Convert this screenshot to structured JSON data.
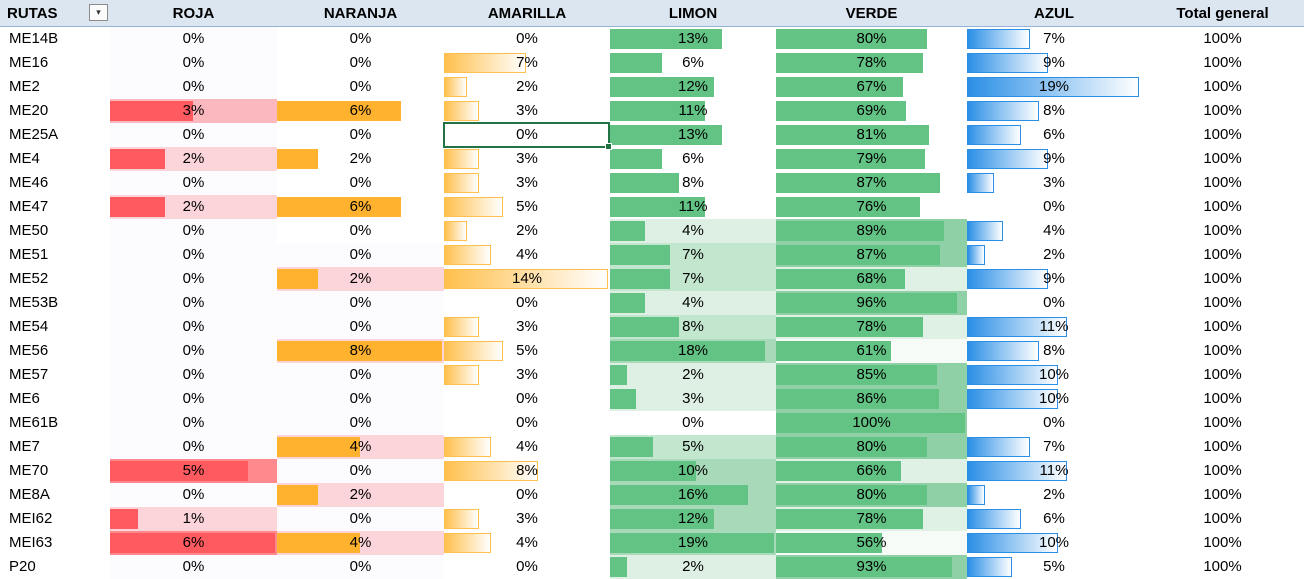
{
  "columns": [
    "RUTAS",
    "ROJA",
    "NARANJA",
    "AMARILLA",
    "LIMON",
    "VERDE",
    "AZUL",
    "Total general"
  ],
  "filter_icon": "dropdown-arrow-icon",
  "selected_cell": {
    "row": 4,
    "column": "AMARILLA"
  },
  "colors": {
    "header_bg": "#dce6f1",
    "roja_bar": "#ff5a5f",
    "naranja_bar": "#ffb22e",
    "amarilla_bar": "#ffc04d",
    "limon_bar": "#63c384",
    "verde_bar": "#63c384",
    "azul_bar": "#2b8fe6",
    "pink_bg": "#fbd5da",
    "green_bg": "#d7ece0"
  },
  "rows": [
    {
      "ruta": "ME14B",
      "roja": "0%",
      "naranja": "0%",
      "amarilla": "0%",
      "limon": "13%",
      "verde": "80%",
      "azul": "7%",
      "total": "100%"
    },
    {
      "ruta": "ME16",
      "roja": "0%",
      "naranja": "0%",
      "amarilla": "7%",
      "limon": "6%",
      "verde": "78%",
      "azul": "9%",
      "total": "100%"
    },
    {
      "ruta": "ME2",
      "roja": "0%",
      "naranja": "0%",
      "amarilla": "2%",
      "limon": "12%",
      "verde": "67%",
      "azul": "19%",
      "total": "100%"
    },
    {
      "ruta": "ME20",
      "roja": "3%",
      "naranja": "6%",
      "amarilla": "3%",
      "limon": "11%",
      "verde": "69%",
      "azul": "8%",
      "total": "100%"
    },
    {
      "ruta": "ME25A",
      "roja": "0%",
      "naranja": "0%",
      "amarilla": "0%",
      "limon": "13%",
      "verde": "81%",
      "azul": "6%",
      "total": "100%"
    },
    {
      "ruta": "ME4",
      "roja": "2%",
      "naranja": "2%",
      "amarilla": "3%",
      "limon": "6%",
      "verde": "79%",
      "azul": "9%",
      "total": "100%"
    },
    {
      "ruta": "ME46",
      "roja": "0%",
      "naranja": "0%",
      "amarilla": "3%",
      "limon": "8%",
      "verde": "87%",
      "azul": "3%",
      "total": "100%"
    },
    {
      "ruta": "ME47",
      "roja": "2%",
      "naranja": "6%",
      "amarilla": "5%",
      "limon": "11%",
      "verde": "76%",
      "azul": "0%",
      "total": "100%"
    },
    {
      "ruta": "ME50",
      "roja": "0%",
      "naranja": "0%",
      "amarilla": "2%",
      "limon": "4%",
      "verde": "89%",
      "azul": "4%",
      "total": "100%"
    },
    {
      "ruta": "ME51",
      "roja": "0%",
      "naranja": "0%",
      "amarilla": "4%",
      "limon": "7%",
      "verde": "87%",
      "azul": "2%",
      "total": "100%"
    },
    {
      "ruta": "ME52",
      "roja": "0%",
      "naranja": "2%",
      "amarilla": "14%",
      "limon": "7%",
      "verde": "68%",
      "azul": "9%",
      "total": "100%"
    },
    {
      "ruta": "ME53B",
      "roja": "0%",
      "naranja": "0%",
      "amarilla": "0%",
      "limon": "4%",
      "verde": "96%",
      "azul": "0%",
      "total": "100%"
    },
    {
      "ruta": "ME54",
      "roja": "0%",
      "naranja": "0%",
      "amarilla": "3%",
      "limon": "8%",
      "verde": "78%",
      "azul": "11%",
      "total": "100%"
    },
    {
      "ruta": "ME56",
      "roja": "0%",
      "naranja": "8%",
      "amarilla": "5%",
      "limon": "18%",
      "verde": "61%",
      "azul": "8%",
      "total": "100%"
    },
    {
      "ruta": "ME57",
      "roja": "0%",
      "naranja": "0%",
      "amarilla": "3%",
      "limon": "2%",
      "verde": "85%",
      "azul": "10%",
      "total": "100%"
    },
    {
      "ruta": "ME6",
      "roja": "0%",
      "naranja": "0%",
      "amarilla": "0%",
      "limon": "3%",
      "verde": "86%",
      "azul": "10%",
      "total": "100%"
    },
    {
      "ruta": "ME61B",
      "roja": "0%",
      "naranja": "0%",
      "amarilla": "0%",
      "limon": "0%",
      "verde": "100%",
      "azul": "0%",
      "total": "100%"
    },
    {
      "ruta": "ME7",
      "roja": "0%",
      "naranja": "4%",
      "amarilla": "4%",
      "limon": "5%",
      "verde": "80%",
      "azul": "7%",
      "total": "100%"
    },
    {
      "ruta": "ME70",
      "roja": "5%",
      "naranja": "0%",
      "amarilla": "8%",
      "limon": "10%",
      "verde": "66%",
      "azul": "11%",
      "total": "100%"
    },
    {
      "ruta": "ME8A",
      "roja": "0%",
      "naranja": "2%",
      "amarilla": "0%",
      "limon": "16%",
      "verde": "80%",
      "azul": "2%",
      "total": "100%"
    },
    {
      "ruta": "MEI62",
      "roja": "1%",
      "naranja": "0%",
      "amarilla": "3%",
      "limon": "12%",
      "verde": "78%",
      "azul": "6%",
      "total": "100%"
    },
    {
      "ruta": "MEI63",
      "roja": "6%",
      "naranja": "4%",
      "amarilla": "4%",
      "limon": "19%",
      "verde": "56%",
      "azul": "10%",
      "total": "100%"
    },
    {
      "ruta": "P20",
      "roja": "0%",
      "naranja": "0%",
      "amarilla": "0%",
      "limon": "2%",
      "verde": "93%",
      "azul": "5%",
      "total": "100%"
    }
  ]
}
